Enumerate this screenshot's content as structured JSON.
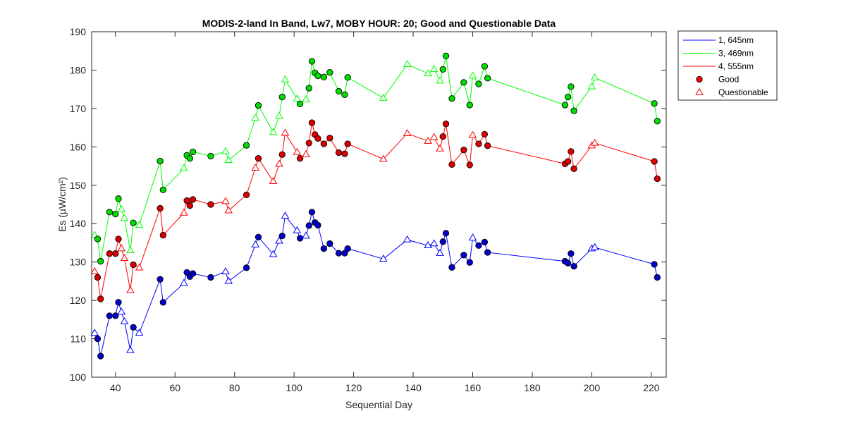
{
  "chart_data": {
    "type": "line",
    "title": "MODIS-2-land In Band,  Lw7, MOBY HOUR: 20;  Good and Questionable Data",
    "xlabel": "Sequential Day",
    "ylabel": "Es (µW/cm²)",
    "xlim": [
      32,
      225
    ],
    "ylim": [
      100,
      190
    ],
    "xticks": [
      40,
      60,
      80,
      100,
      120,
      140,
      160,
      180,
      200,
      220
    ],
    "yticks": [
      100,
      110,
      120,
      130,
      140,
      150,
      160,
      170,
      180,
      190
    ],
    "grid": false,
    "legend_position": "outside-top-right",
    "legend": [
      {
        "label": "1, 645nm",
        "kind": "line",
        "color": "#0000ff"
      },
      {
        "label": "3, 469nm",
        "kind": "line",
        "color": "#00ff00"
      },
      {
        "label": "4, 555nm",
        "kind": "line",
        "color": "#ff0000"
      },
      {
        "label": "Good",
        "kind": "filled-circle",
        "color": "#ff0000"
      },
      {
        "label": "Questionable",
        "kind": "open-triangle",
        "color": "#ff0000"
      }
    ],
    "x": [
      33,
      34,
      35,
      38,
      40,
      41,
      42,
      43,
      45,
      46,
      48,
      55,
      56,
      63,
      64,
      65,
      66,
      72,
      77,
      78,
      84,
      87,
      88,
      93,
      95,
      96,
      97,
      101,
      102,
      104,
      105,
      106,
      107,
      108,
      110,
      112,
      115,
      117,
      118,
      130,
      138,
      145,
      147,
      149,
      150,
      151,
      153,
      157,
      159,
      160,
      162,
      164,
      165,
      191,
      192,
      193,
      194,
      200,
      201,
      221,
      222
    ],
    "quality": [
      "Q",
      "G",
      "G",
      "G",
      "G",
      "G",
      "Q",
      "Q",
      "Q",
      "G",
      "Q",
      "G",
      "G",
      "Q",
      "G",
      "G",
      "G",
      "G",
      "Q",
      "Q",
      "G",
      "Q",
      "G",
      "Q",
      "Q",
      "G",
      "Q",
      "Q",
      "G",
      "Q",
      "G",
      "G",
      "G",
      "G",
      "G",
      "G",
      "G",
      "G",
      "G",
      "Q",
      "Q",
      "Q",
      "Q",
      "Q",
      "G",
      "G",
      "G",
      "G",
      "G",
      "Q",
      "G",
      "G",
      "G",
      "G",
      "G",
      "G",
      "G",
      "Q",
      "Q",
      "G",
      "G"
    ],
    "series": [
      {
        "name": "1, 645nm",
        "color": "#0000ff",
        "fill": "#0000cc",
        "values": [
          111.5,
          110,
          105.5,
          116,
          116,
          119.5,
          117,
          114.5,
          107,
          113,
          111.5,
          125.5,
          119.5,
          124.5,
          127.3,
          126.2,
          127,
          126,
          127.5,
          125,
          128.5,
          134.5,
          136.5,
          132,
          135.5,
          136.8,
          142,
          138.2,
          136.2,
          136.8,
          139.5,
          143,
          140.3,
          139.6,
          133.5,
          134.8,
          132.3,
          132.3,
          133.5,
          130.8,
          135.8,
          134.3,
          134.8,
          132.3,
          135.3,
          137.5,
          128.6,
          131.8,
          129.9,
          136.3,
          134.3,
          135.2,
          132.5,
          130.2,
          129.7,
          132.2,
          128.9,
          133.5,
          133.8,
          129.4,
          126
        ]
      },
      {
        "name": "3, 469nm",
        "color": "#00ff00",
        "fill": "#00dd00",
        "values": [
          137,
          136,
          130.2,
          143,
          142.5,
          146.5,
          143.7,
          141.4,
          133,
          140.2,
          139.6,
          156.3,
          148.8,
          154.4,
          157.8,
          157,
          158.7,
          157.6,
          158.8,
          156.5,
          160.4,
          167.5,
          170.8,
          163.8,
          168,
          173,
          177.5,
          172.5,
          171.2,
          172.3,
          175.3,
          182.3,
          179.3,
          178.5,
          178.2,
          179.4,
          174.5,
          173.6,
          178.1,
          172.7,
          181.5,
          179.1,
          180.2,
          177.2,
          180.2,
          183.7,
          172.6,
          176.8,
          170.9,
          178.5,
          176.4,
          181,
          177.9,
          170.9,
          173,
          175.7,
          169.4,
          175.7,
          178,
          171.3,
          166.7
        ]
      },
      {
        "name": "4, 555nm",
        "color": "#ff0000",
        "fill": "#dd0000",
        "values": [
          127.5,
          126,
          120.4,
          132.2,
          132.2,
          136,
          133.5,
          131,
          122.6,
          129.3,
          128.5,
          144,
          137,
          142.8,
          146,
          144.7,
          146.3,
          145,
          145.8,
          143.4,
          147.5,
          154.5,
          157,
          151,
          155.5,
          158,
          163.6,
          158.6,
          157,
          158,
          161,
          166.3,
          163.2,
          162.2,
          160.8,
          162.3,
          158.5,
          158.2,
          160.8,
          156.8,
          163.5,
          161.5,
          162.5,
          159.5,
          162.7,
          166,
          155.4,
          159.2,
          155.3,
          163,
          160.8,
          163.3,
          160.3,
          155.6,
          156.2,
          158.8,
          154.3,
          160.3,
          161,
          156.2,
          151.7
        ]
      }
    ]
  }
}
